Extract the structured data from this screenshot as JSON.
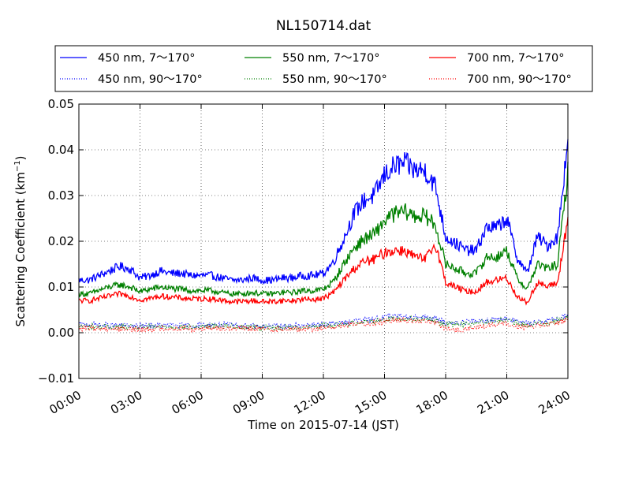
{
  "chart_data": {
    "type": "line",
    "title": "NL150714.dat",
    "xlabel": "Time on 2015-07-14 (JST)",
    "ylabel": "Scattering Coefficient (km",
    "ylabel_sup": "−1",
    "ylabel_end": ")",
    "xlim": [
      0,
      24
    ],
    "ylim": [
      -0.01,
      0.05
    ],
    "grid": true,
    "legend_position": "top",
    "x_ticks": [
      {
        "value": 0,
        "label": "00:00"
      },
      {
        "value": 3,
        "label": "03:00"
      },
      {
        "value": 6,
        "label": "06:00"
      },
      {
        "value": 9,
        "label": "09:00"
      },
      {
        "value": 12,
        "label": "12:00"
      },
      {
        "value": 15,
        "label": "15:00"
      },
      {
        "value": 18,
        "label": "18:00"
      },
      {
        "value": 21,
        "label": "21:00"
      },
      {
        "value": 24,
        "label": "24:00"
      }
    ],
    "y_ticks": [
      {
        "value": -0.01,
        "label": "−0.01"
      },
      {
        "value": 0.0,
        "label": "0.00"
      },
      {
        "value": 0.01,
        "label": "0.01"
      },
      {
        "value": 0.02,
        "label": "0.02"
      },
      {
        "value": 0.03,
        "label": "0.03"
      },
      {
        "value": 0.04,
        "label": "0.04"
      },
      {
        "value": 0.05,
        "label": "0.05"
      }
    ],
    "x": [
      0,
      0.5,
      1,
      1.5,
      2,
      2.5,
      3,
      3.5,
      4,
      4.5,
      5,
      5.5,
      6,
      6.5,
      7,
      7.5,
      8,
      8.5,
      9,
      9.5,
      10,
      10.5,
      11,
      11.5,
      12,
      12.5,
      13,
      13.5,
      14,
      14.5,
      15,
      15.5,
      16,
      16.5,
      17,
      17.5,
      18,
      18.5,
      19,
      19.5,
      20,
      20.5,
      21,
      21.5,
      22,
      22.5,
      23,
      23.5,
      24
    ],
    "series": [
      {
        "name": "450 nm, 7～170°",
        "color": "#0000ff",
        "style": "solid",
        "values": [
          0.0115,
          0.0115,
          0.0125,
          0.0135,
          0.0145,
          0.014,
          0.012,
          0.0125,
          0.0135,
          0.013,
          0.013,
          0.0125,
          0.0125,
          0.0125,
          0.012,
          0.0115,
          0.0115,
          0.012,
          0.0115,
          0.0115,
          0.012,
          0.012,
          0.0125,
          0.0125,
          0.013,
          0.0155,
          0.0205,
          0.026,
          0.029,
          0.03,
          0.0345,
          0.0365,
          0.037,
          0.0355,
          0.0355,
          0.032,
          0.021,
          0.0195,
          0.018,
          0.018,
          0.023,
          0.023,
          0.025,
          0.0165,
          0.013,
          0.021,
          0.019,
          0.021,
          0.043
        ]
      },
      {
        "name": "550 nm, 7～170°",
        "color": "#008000",
        "style": "solid",
        "values": [
          0.0085,
          0.0085,
          0.0093,
          0.01,
          0.0105,
          0.01,
          0.009,
          0.0095,
          0.01,
          0.0097,
          0.0095,
          0.0092,
          0.0092,
          0.0092,
          0.0088,
          0.0085,
          0.0085,
          0.0088,
          0.0085,
          0.0085,
          0.0088,
          0.0088,
          0.0092,
          0.0092,
          0.0095,
          0.0112,
          0.015,
          0.0185,
          0.0205,
          0.0215,
          0.0245,
          0.026,
          0.0265,
          0.0255,
          0.0255,
          0.0235,
          0.015,
          0.014,
          0.013,
          0.013,
          0.0165,
          0.0165,
          0.018,
          0.012,
          0.0095,
          0.015,
          0.014,
          0.015,
          0.035
        ]
      },
      {
        "name": "700 nm, 7～170°",
        "color": "#ff0000",
        "style": "solid",
        "values": [
          0.007,
          0.007,
          0.0075,
          0.008,
          0.0085,
          0.008,
          0.0072,
          0.0075,
          0.008,
          0.0078,
          0.0076,
          0.0074,
          0.0074,
          0.0074,
          0.0071,
          0.0068,
          0.0068,
          0.007,
          0.0068,
          0.0068,
          0.007,
          0.007,
          0.0073,
          0.0073,
          0.0075,
          0.0088,
          0.0115,
          0.014,
          0.0155,
          0.016,
          0.0175,
          0.018,
          0.018,
          0.0165,
          0.016,
          0.0195,
          0.011,
          0.01,
          0.009,
          0.009,
          0.011,
          0.0115,
          0.012,
          0.008,
          0.0065,
          0.011,
          0.01,
          0.011,
          0.025
        ]
      },
      {
        "name": "450 nm, 90～170°",
        "color": "#0000ff",
        "style": "dotted",
        "values": [
          0.0018,
          0.0018,
          0.0017,
          0.0016,
          0.0016,
          0.0015,
          0.0014,
          0.0015,
          0.0016,
          0.0016,
          0.0016,
          0.0015,
          0.0016,
          0.0018,
          0.0018,
          0.0017,
          0.0016,
          0.0016,
          0.0015,
          0.0014,
          0.0014,
          0.0015,
          0.0015,
          0.0016,
          0.0018,
          0.002,
          0.0022,
          0.0026,
          0.0028,
          0.003,
          0.0034,
          0.0036,
          0.0036,
          0.0034,
          0.0034,
          0.003,
          0.0022,
          0.0022,
          0.0024,
          0.0026,
          0.0028,
          0.003,
          0.0032,
          0.0024,
          0.002,
          0.0024,
          0.0026,
          0.003,
          0.004
        ]
      },
      {
        "name": "550 nm, 90～170°",
        "color": "#008000",
        "style": "dotted",
        "values": [
          0.0014,
          0.0014,
          0.0013,
          0.0013,
          0.0012,
          0.0012,
          0.0011,
          0.0012,
          0.0013,
          0.0013,
          0.0013,
          0.0012,
          0.0013,
          0.0015,
          0.0015,
          0.0014,
          0.0013,
          0.0013,
          0.0012,
          0.0011,
          0.0011,
          0.0012,
          0.0012,
          0.0013,
          0.0015,
          0.0017,
          0.0019,
          0.0022,
          0.0024,
          0.0026,
          0.0029,
          0.0031,
          0.0031,
          0.0029,
          0.0029,
          0.0026,
          0.0019,
          0.0019,
          0.002,
          0.0022,
          0.0024,
          0.0026,
          0.0027,
          0.002,
          0.0017,
          0.002,
          0.0022,
          0.0026,
          0.0034
        ]
      },
      {
        "name": "700 nm, 90～170°",
        "color": "#ff0000",
        "style": "dotted",
        "values": [
          0.001,
          0.001,
          0.0009,
          0.0009,
          0.0008,
          0.0008,
          0.0007,
          0.0008,
          0.0009,
          0.0009,
          0.0009,
          0.0008,
          0.0009,
          0.0011,
          0.0011,
          0.001,
          0.0009,
          0.0009,
          0.0008,
          0.0007,
          0.0007,
          0.0008,
          0.0008,
          0.0009,
          0.0011,
          0.0013,
          0.0015,
          0.0018,
          0.002,
          0.0022,
          0.0025,
          0.0027,
          0.0027,
          0.0025,
          0.0025,
          0.0022,
          0.001,
          0.0005,
          0.0008,
          0.0012,
          0.0015,
          0.0018,
          0.002,
          0.0014,
          0.0012,
          0.0015,
          0.0018,
          0.0022,
          0.003
        ]
      }
    ]
  }
}
